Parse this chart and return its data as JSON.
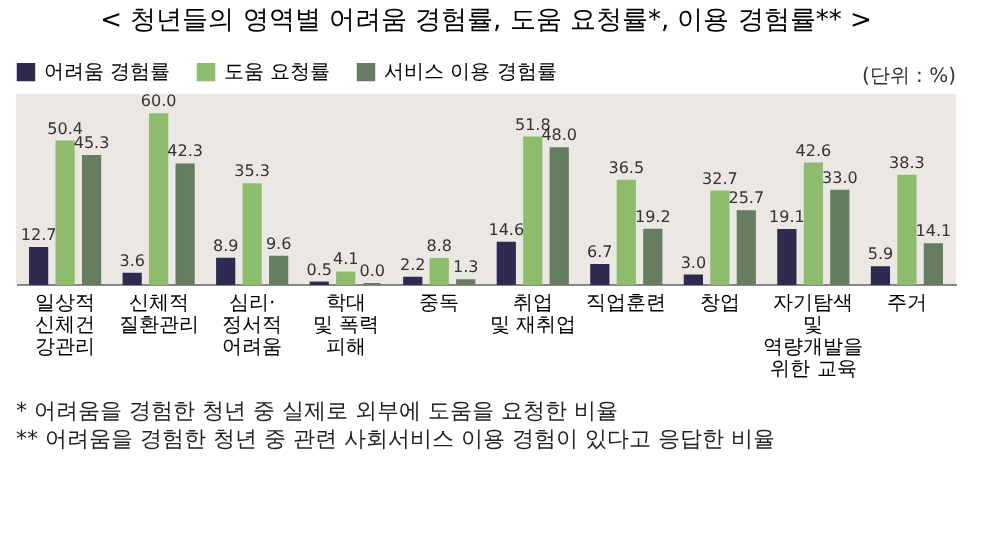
{
  "chart_data": {
    "type": "bar",
    "title": "< 청년들의 영역별 어려움 경험률, 도움 요청률*, 이용 경험률** >",
    "categories": [
      "일상적\n신체건강관리",
      "신체적\n질환관리",
      "심리·정서적\n어려움",
      "학대 및 폭력\n피해",
      "중독",
      "취업 및 재취업",
      "직업훈련",
      "창업",
      "자기탐색 및\n역량개발을\n위한 교육",
      "주거"
    ],
    "series": [
      {
        "name": "어려움 경험률",
        "color": "#2f2b50",
        "values": [
          12.7,
          3.6,
          8.9,
          0.5,
          2.2,
          14.6,
          6.7,
          3.0,
          19.1,
          5.9
        ],
        "value_labels": [
          "12.7",
          "3.6",
          "8.9",
          "0.5",
          "2.2",
          "14.6",
          "6.7",
          "3.0",
          "19.1",
          "5.9"
        ]
      },
      {
        "name": "도움 요청률",
        "color": "#8dbd6c",
        "values": [
          50.4,
          60.0,
          35.3,
          4.1,
          8.8,
          51.8,
          36.5,
          32.7,
          42.6,
          38.3
        ],
        "value_labels": [
          "50.4",
          "60.0",
          "35.3",
          "4.1",
          "8.8",
          "51.8",
          "36.5",
          "32.7",
          "42.6",
          "38.3"
        ]
      },
      {
        "name": "서비스 이용 경험률",
        "color": "#667d60",
        "values": [
          45.3,
          42.3,
          9.6,
          0.0,
          1.3,
          48.0,
          19.2,
          25.7,
          33.0,
          14.1
        ],
        "value_labels": [
          "45.3",
          "42.3",
          "9.6",
          "0.0",
          "1.3",
          "48.0",
          "19.2",
          "25.7",
          "33.0",
          "14.1"
        ]
      }
    ],
    "legend": "top left",
    "annotations": [
      "(단위 : %)",
      "* 어려움을 경험한 청년 중 실제로 외부에 도움을 요청한 비율",
      "** 어려움을 경험한 청년 중 관련 사회서비스 이용 경험이 있다고 응답한 비율"
    ]
  }
}
